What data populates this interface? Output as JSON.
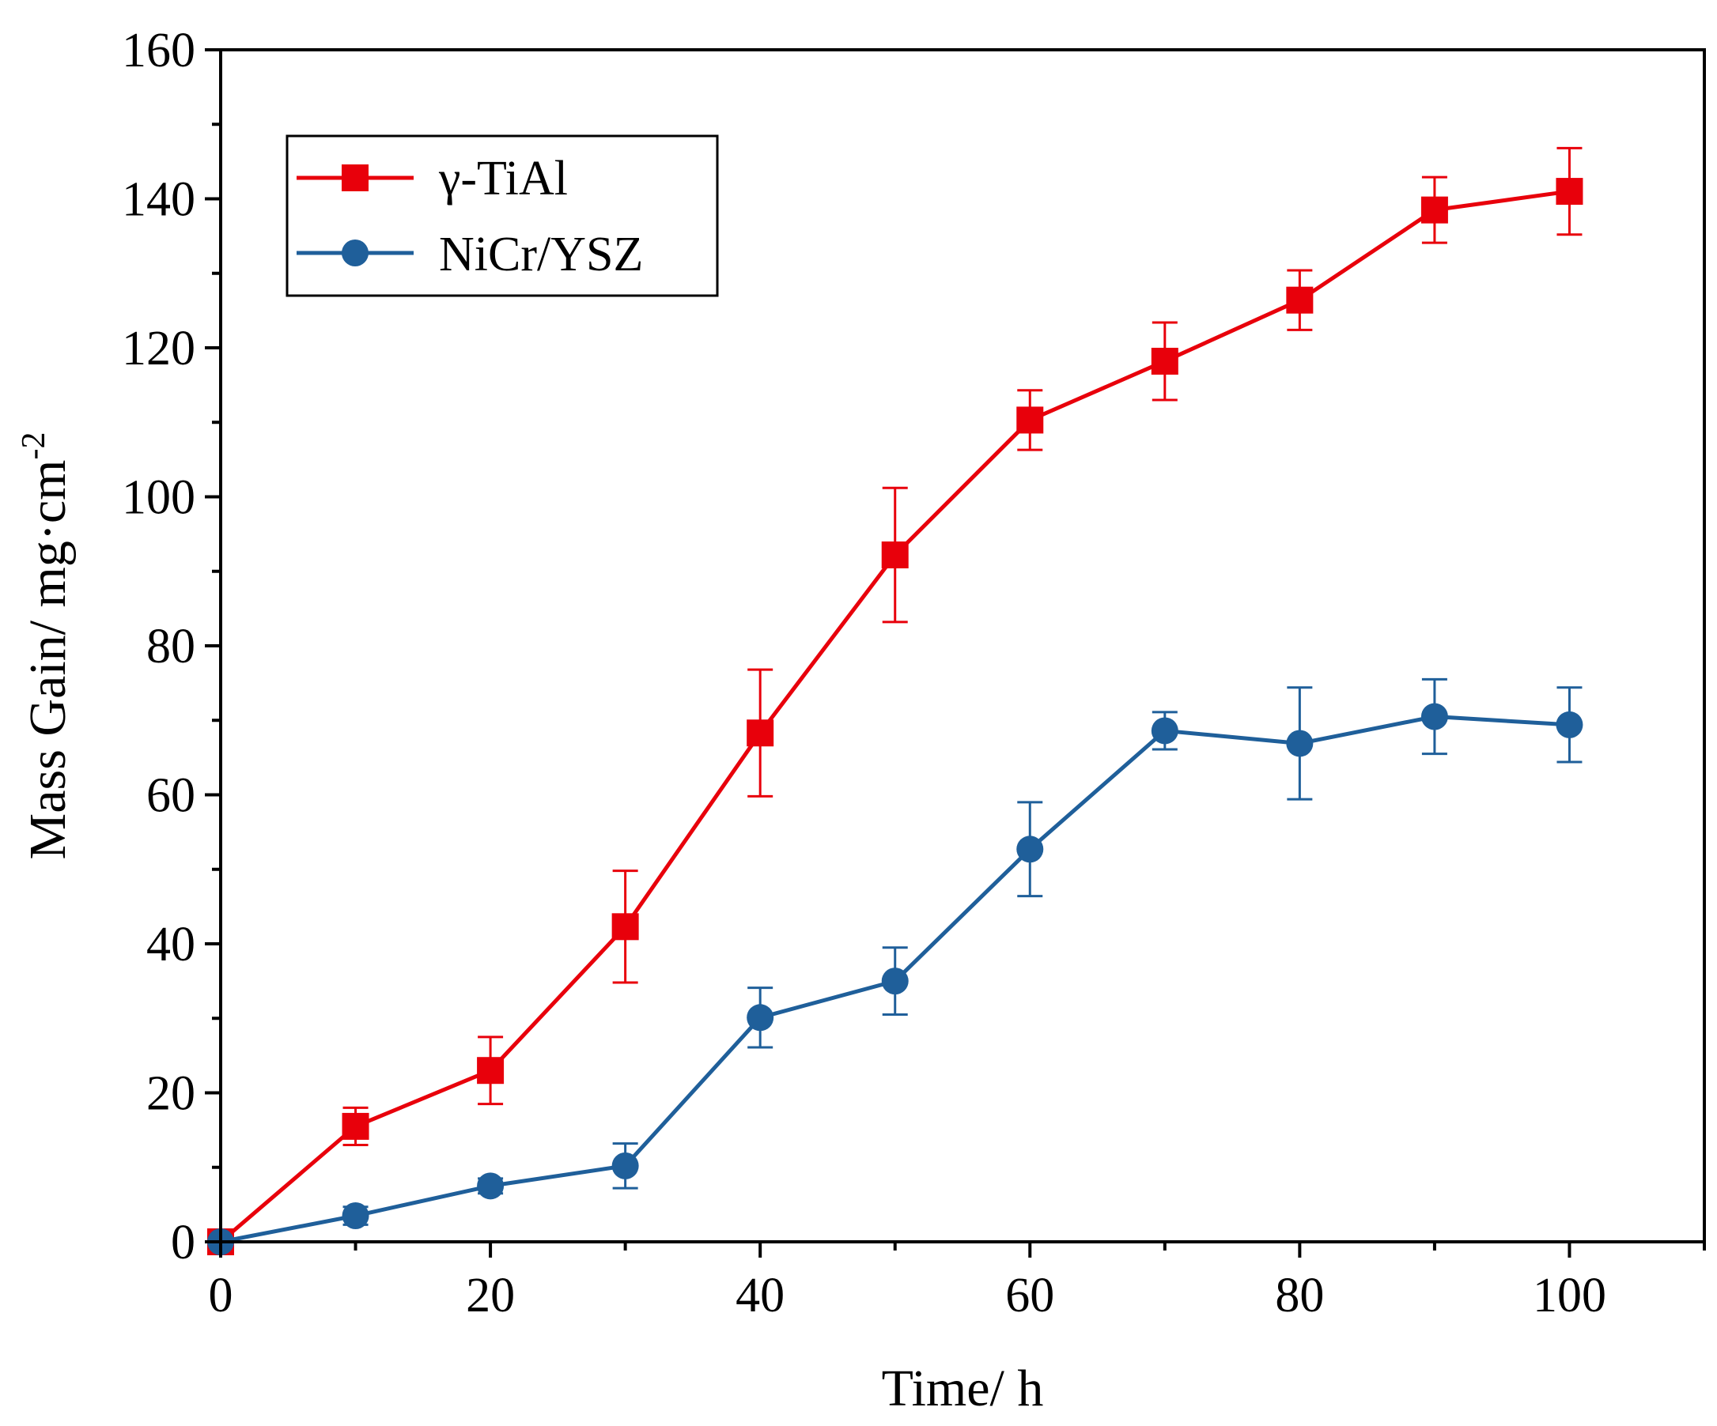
{
  "chart_data": {
    "type": "line",
    "title": "",
    "xlabel": "Time/ h",
    "ylabel_main": "Mass Gain/ mg·cm",
    "ylabel_sup": "-2",
    "xlim": [
      0,
      110
    ],
    "ylim": [
      0,
      160
    ],
    "x_ticks": [
      0,
      20,
      40,
      60,
      80,
      100
    ],
    "y_ticks": [
      0,
      20,
      40,
      60,
      80,
      100,
      120,
      140,
      160
    ],
    "grid": false,
    "legend_position": "top-left",
    "x": [
      0,
      10,
      20,
      30,
      40,
      50,
      60,
      70,
      80,
      90,
      100
    ],
    "series": [
      {
        "name": "γ-TiAl",
        "color": "#e8000b",
        "marker": "square",
        "values": [
          0,
          15.5,
          23,
          42.3,
          68.3,
          92.2,
          110.3,
          118.2,
          126.4,
          138.5,
          141
        ],
        "errors": [
          0,
          2.5,
          4.5,
          7.5,
          8.5,
          9,
          4,
          5.2,
          4,
          4.4,
          5.8
        ]
      },
      {
        "name": "NiCr/YSZ",
        "color": "#1f5f9a",
        "marker": "circle",
        "values": [
          0,
          3.5,
          7.5,
          10.2,
          30.1,
          35,
          52.7,
          68.6,
          66.9,
          70.5,
          69.4
        ],
        "errors": [
          0,
          1.2,
          1,
          3,
          4,
          4.5,
          6.3,
          2.5,
          7.5,
          5,
          5
        ]
      }
    ]
  }
}
